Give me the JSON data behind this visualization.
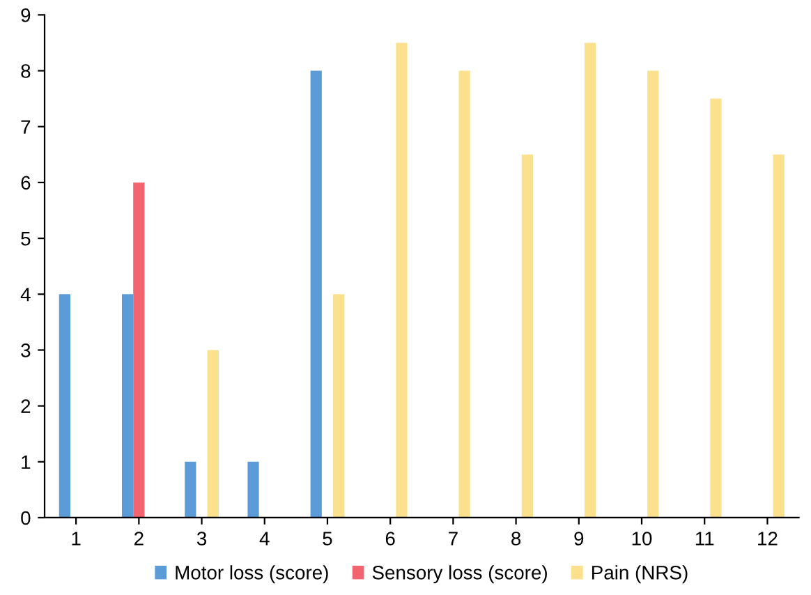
{
  "chart_data": {
    "type": "bar",
    "categories": [
      "1",
      "2",
      "3",
      "4",
      "5",
      "6",
      "7",
      "8",
      "9",
      "10",
      "11",
      "12"
    ],
    "series": [
      {
        "name": "Motor loss (score)",
        "color": "#5a9bd8",
        "values": [
          4,
          4,
          1,
          1,
          8,
          null,
          null,
          null,
          null,
          null,
          null,
          null
        ]
      },
      {
        "name": "Sensory loss (score)",
        "color": "#f26470",
        "values": [
          null,
          6,
          null,
          null,
          null,
          null,
          null,
          null,
          null,
          null,
          null,
          null
        ]
      },
      {
        "name": "Pain (NRS)",
        "color": "#fbe18e",
        "values": [
          null,
          null,
          3,
          null,
          4,
          8.5,
          8,
          6.5,
          8.5,
          8,
          7.5,
          6.5
        ]
      }
    ],
    "ylim": [
      0,
      9
    ],
    "yticks": [
      0,
      1,
      2,
      3,
      4,
      5,
      6,
      7,
      8,
      9
    ],
    "grid": false,
    "legend": "bottom"
  }
}
